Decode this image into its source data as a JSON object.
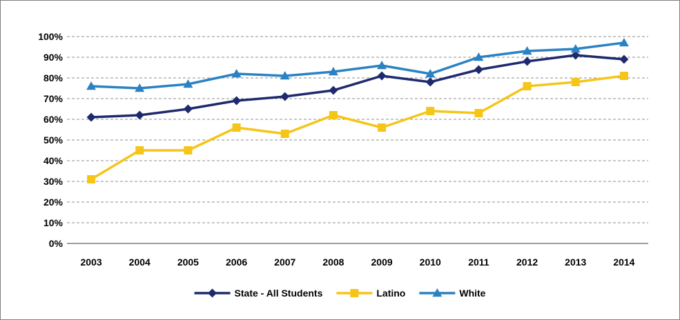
{
  "chart_data": {
    "type": "line",
    "title": "",
    "xlabel": "",
    "ylabel": "",
    "categories": [
      "2003",
      "2004",
      "2005",
      "2006",
      "2007",
      "2008",
      "2009",
      "2010",
      "2011",
      "2012",
      "2013",
      "2014"
    ],
    "ylim": [
      0,
      100
    ],
    "yticks": [
      "0%",
      "10%",
      "20%",
      "30%",
      "40%",
      "50%",
      "60%",
      "70%",
      "80%",
      "90%",
      "100%"
    ],
    "grid": true,
    "legend_position": "bottom",
    "series": [
      {
        "name": "State - All Students",
        "color": "#1f2a6e",
        "marker": "diamond",
        "values": [
          61,
          62,
          65,
          69,
          71,
          74,
          81,
          78,
          84,
          88,
          91,
          89
        ]
      },
      {
        "name": "Latino",
        "color": "#f5c518",
        "marker": "square",
        "values": [
          31,
          45,
          45,
          56,
          53,
          62,
          56,
          64,
          63,
          76,
          78,
          81
        ]
      },
      {
        "name": "White",
        "color": "#2b82c3",
        "marker": "triangle",
        "values": [
          76,
          75,
          77,
          82,
          81,
          83,
          86,
          82,
          90,
          93,
          94,
          97
        ]
      }
    ]
  }
}
